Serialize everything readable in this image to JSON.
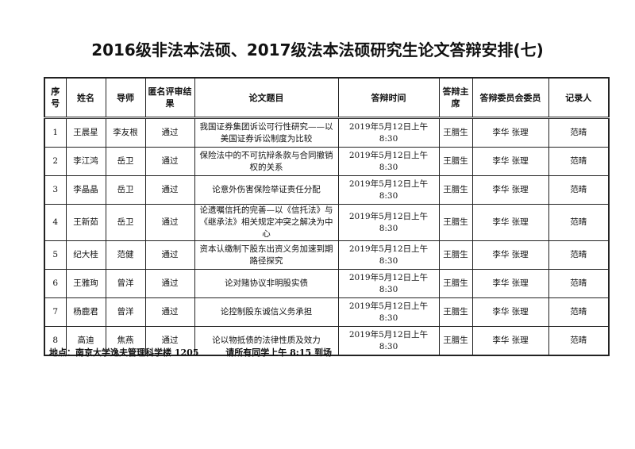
{
  "title": "2016级非法本法硕、2017级法本法硕研究生论文答辩安排(七)",
  "headers": [
    "序号",
    "姓名",
    "导师",
    "匿名评审结果",
    "论文题目",
    "答辩时间",
    "答辩主席",
    "答辩委员会委员",
    "记录人"
  ],
  "rows": [
    [
      "1",
      "王晨星",
      "李友根",
      "通过",
      "我国证券集团诉讼可行性研究——以美国证券诉讼制度为比较",
      "2019年5月12日上午8:30",
      "王腊生",
      "李华 张理",
      "范晴"
    ],
    [
      "2",
      "李江鸿",
      "岳卫",
      "通过",
      "保险法中的不可抗辩条款与合同撤销权的关系",
      "2019年5月12日上午8:30",
      "王腊生",
      "李华 张理",
      "范晴"
    ],
    [
      "3",
      "李晶晶",
      "岳卫",
      "通过",
      "论意外伤害保险举证责任分配",
      "2019年5月12日上午8:30",
      "王腊生",
      "李华 张理",
      "范晴"
    ],
    [
      "4",
      "王新茹",
      "岳卫",
      "通过",
      "论遗嘱信托的完善—以《信托法》与《继承法》相关规定冲突之解决为中心",
      "2019年5月12日上午8:30",
      "王腊生",
      "李华 张理",
      "范晴"
    ],
    [
      "5",
      "纪大桂",
      "范健",
      "通过",
      "资本认缴制下股东出资义务加速到期路径探究",
      "2019年5月12日上午8:30",
      "王腊生",
      "李华 张理",
      "范晴"
    ],
    [
      "6",
      "王雅珣",
      "曾洋",
      "通过",
      "论对赌协议非明股实债",
      "2019年5月12日上午8:30",
      "王腊生",
      "李华 张理",
      "范晴"
    ],
    [
      "7",
      "杨鹿君",
      "曾洋",
      "通过",
      "论控制股东诚信义务承担",
      "2019年5月12日上午8:30",
      "王腊生",
      "李华 张理",
      "范晴"
    ],
    [
      "8",
      "高迪",
      "焦燕",
      "通过",
      "论以物抵债的法律性质及效力",
      "2019年5月12日上午8:30",
      "王腊生",
      "李华 张理",
      "范晴"
    ]
  ],
  "footer": {
    "location": "地点：南京大学逸夫管理科学楼 1205",
    "notice": "请所有同学上午 8:15 到场"
  }
}
